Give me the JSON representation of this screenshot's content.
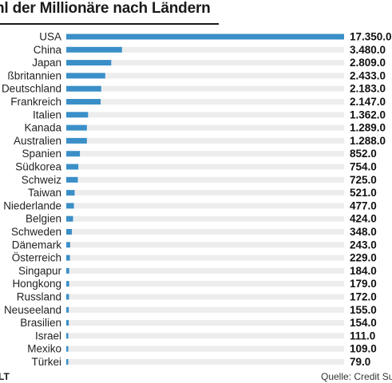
{
  "chart_data": {
    "type": "bar",
    "orientation": "horizontal",
    "title": "hl der Millionäre nach Ländern",
    "categories": [
      "USA",
      "China",
      "Japan",
      "ßbritannien",
      "Deutschland",
      "Frankreich",
      "Italien",
      "Kanada",
      "Australien",
      "Spanien",
      "Südkorea",
      "Schweiz",
      "Taiwan",
      "Niederlande",
      "Belgien",
      "Schweden",
      "Dänemark",
      "Österreich",
      "Singapur",
      "Hongkong",
      "Russland",
      "Neuseeland",
      "Brasilien",
      "Israel",
      "Mexiko",
      "Türkei"
    ],
    "values": [
      17350000,
      3480000,
      2809000,
      2433000,
      2183000,
      2147000,
      1362000,
      1289000,
      1288000,
      852000,
      754000,
      725000,
      521000,
      477000,
      424000,
      348000,
      243000,
      229000,
      184000,
      179000,
      172000,
      155000,
      154000,
      111000,
      109000,
      79000
    ],
    "value_labels": [
      "17.350.0",
      "3.480.0",
      "2.809.0",
      "2.433.0",
      "2.183.0",
      "2.147.0",
      "1.362.0",
      "1.289.0",
      "1.288.0",
      "852.0",
      "754.0",
      "725.0",
      "521.0",
      "477.0",
      "424.0",
      "348.0",
      "243.0",
      "229.0",
      "184.0",
      "179.0",
      "172.0",
      "155.0",
      "154.0",
      "111.0",
      "109.0",
      "79.0"
    ],
    "xlim": [
      0,
      17350000
    ],
    "colors": {
      "bar": "#3a8fc8",
      "track": "#ededed"
    }
  },
  "footer": {
    "logo": "LT",
    "source": "Quelle: Credit Su"
  }
}
